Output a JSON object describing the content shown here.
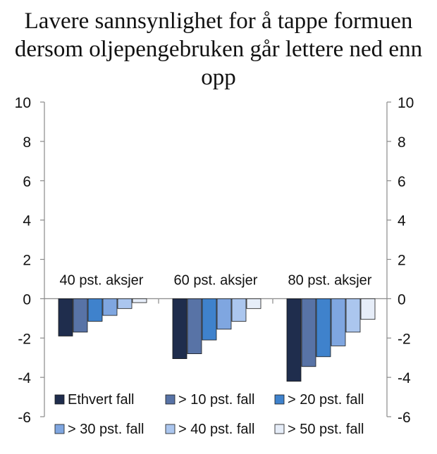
{
  "chart_data": {
    "type": "bar",
    "title_lines": [
      "Lavere sannsynlighet for å tappe formuen",
      "dersom oljepengebruken går lettere ned enn",
      "opp"
    ],
    "categories": [
      "40 pst. aksjer",
      "60 pst. aksjer",
      "80 pst. aksjer"
    ],
    "series": [
      {
        "name": "Ethvert fall",
        "color": "#1f2d4d",
        "values": [
          -1.9,
          -3.05,
          -4.2
        ]
      },
      {
        "name": "> 10 pst. fall",
        "color": "#5873a6",
        "values": [
          -1.7,
          -2.8,
          -3.45
        ]
      },
      {
        "name": "> 20 pst. fall",
        "color": "#3f82cc",
        "values": [
          -1.15,
          -2.1,
          -2.95
        ]
      },
      {
        "name": "> 30 pst. fall",
        "color": "#7fa6e0",
        "values": [
          -0.85,
          -1.55,
          -2.4
        ]
      },
      {
        "name": "> 40 pst. fall",
        "color": "#abc6ee",
        "values": [
          -0.5,
          -1.15,
          -1.7
        ]
      },
      {
        "name": "> 50 pst. fall",
        "color": "#e6edf8",
        "values": [
          -0.2,
          -0.5,
          -1.05
        ]
      }
    ],
    "ylim": [
      -6,
      10
    ],
    "yticks": [
      10,
      8,
      6,
      4,
      2,
      0,
      -2,
      -4,
      -6
    ],
    "y_axis_both_sides": true,
    "grid": false,
    "legend_position": "bottom, inside plot, 2 rows"
  }
}
